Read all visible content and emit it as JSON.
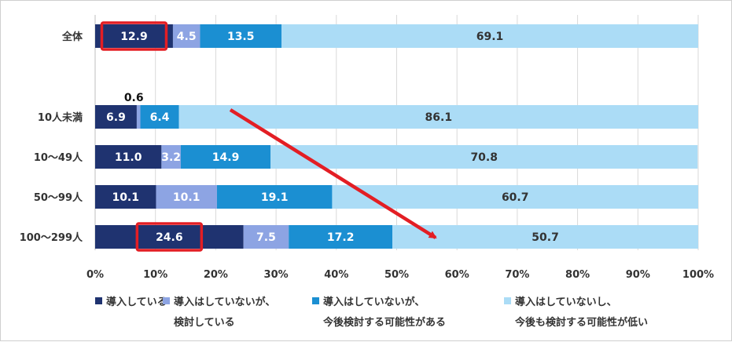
{
  "chart_data": {
    "type": "bar",
    "orientation": "horizontal",
    "stacked": true,
    "categories": [
      "全体",
      "10人未満",
      "10～49人",
      "50～99人",
      "100～299人"
    ],
    "series": [
      {
        "name": "導入している",
        "color": "#1f3370",
        "label_color": "#ffffff",
        "values": [
          12.9,
          6.9,
          11.0,
          10.1,
          24.6
        ]
      },
      {
        "name": "導入はしていないが、検討している",
        "name_lines": [
          "導入はしていないが、",
          "検討している"
        ],
        "color": "#8da4e3",
        "label_color": "#ffffff",
        "values": [
          4.5,
          0.6,
          3.2,
          10.1,
          7.5
        ]
      },
      {
        "name": "導入はしていないが、今後検討する可能性がある",
        "name_lines": [
          "導入はしていないが、",
          "今後検討する可能性がある"
        ],
        "color": "#1b8fd2",
        "label_color": "#ffffff",
        "values": [
          13.5,
          6.4,
          14.9,
          19.1,
          17.2
        ]
      },
      {
        "name": "導入はしていないし、今後も検討する可能性が低い",
        "name_lines": [
          "導入はしていないし、",
          "今後も検討する可能性が低い"
        ],
        "color": "#abdcf6",
        "label_color": "#333333",
        "values": [
          69.1,
          86.1,
          70.8,
          60.7,
          50.7
        ]
      }
    ],
    "value_labels": [
      [
        "12.9",
        "4.5",
        "13.5",
        "69.1"
      ],
      [
        "6.9",
        "0.6",
        "6.4",
        "86.1"
      ],
      [
        "11.0",
        "3.2",
        "14.9",
        "70.8"
      ],
      [
        "10.1",
        "10.1",
        "19.1",
        "60.7"
      ],
      [
        "24.6",
        "7.5",
        "17.2",
        "50.7"
      ]
    ],
    "xlim": [
      0,
      100
    ],
    "x_ticks": [
      "0%",
      "10%",
      "20%",
      "30%",
      "40%",
      "50%",
      "60%",
      "70%",
      "80%",
      "90%",
      "100%"
    ],
    "grid": true,
    "legend_position": "bottom",
    "highlight_boxes": [
      {
        "category": "全体",
        "series": "導入している",
        "color": "#e31e24"
      },
      {
        "category": "100～299人",
        "series": "導入している",
        "color": "#e31e24"
      }
    ],
    "trend_arrow": {
      "from_category": "10人未満",
      "to_category": "100～299人",
      "color": "#e31e24"
    }
  }
}
